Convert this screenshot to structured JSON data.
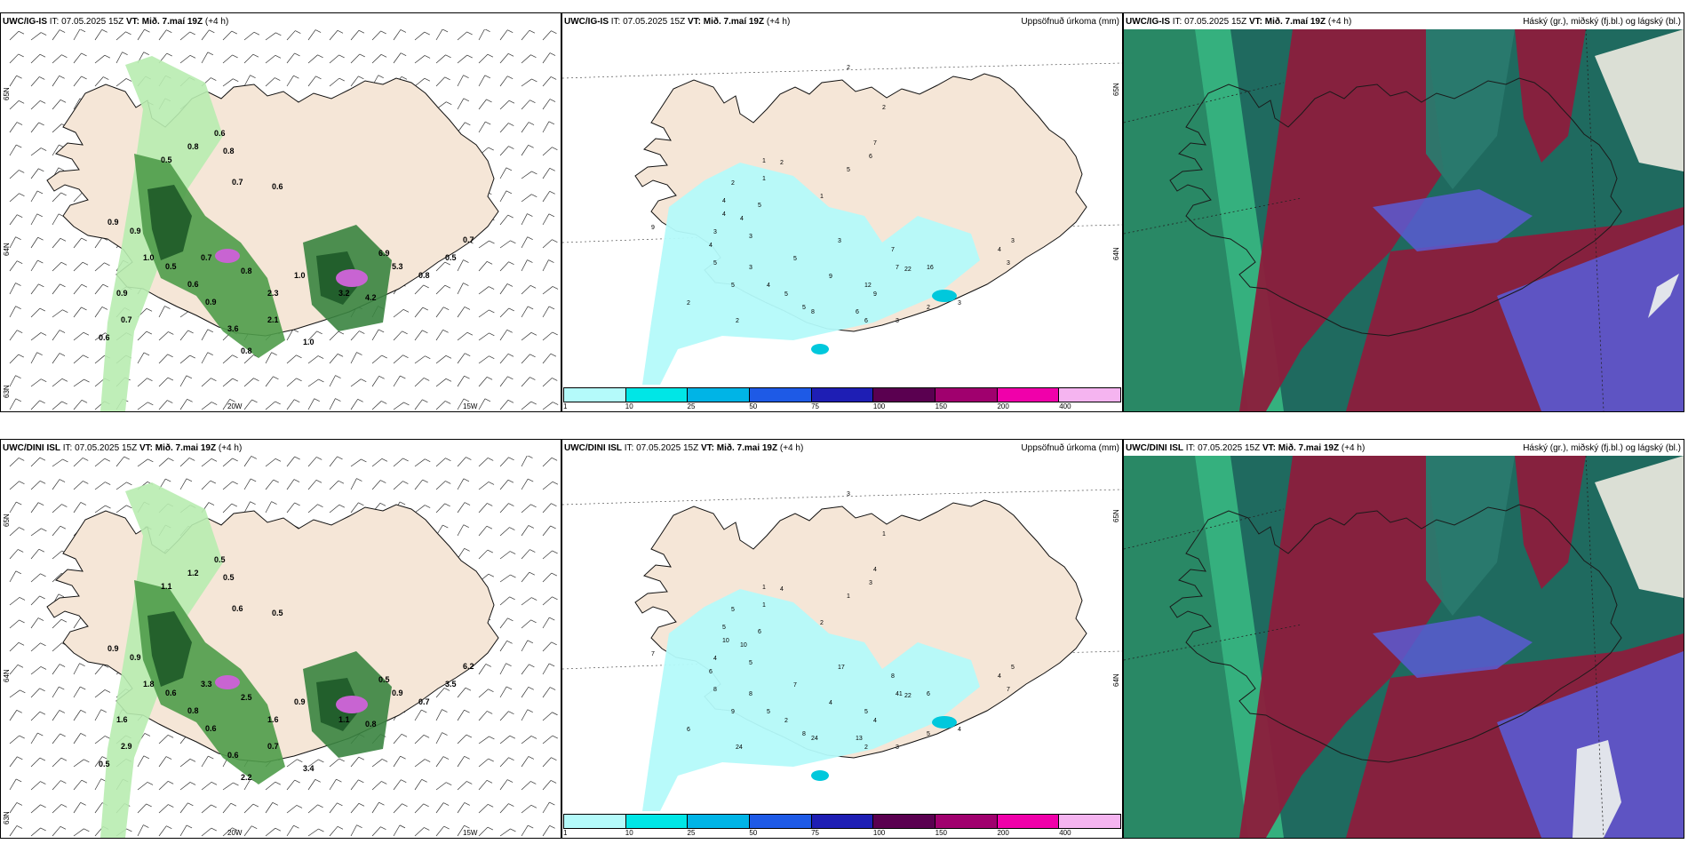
{
  "panels": {
    "p1": {
      "model": "UWC/IG-IS",
      "it_label": "IT:",
      "it": "07.05.2025 15Z",
      "vt_label": "VT:",
      "vt": "Mið. 7.maí 19Z",
      "lead": "(+4 h)",
      "right": "",
      "lat_labels": [
        "65N",
        "64N",
        "63N"
      ],
      "lon_labels": [
        "20W",
        "15W"
      ],
      "values": [
        "0.6",
        "0.8",
        "0.8",
        "0.5",
        "0.7",
        "0.6",
        "0.9",
        "1.0",
        "0.5",
        "0.7",
        "0.8",
        "2.3",
        "1.0",
        "3.2",
        "4.2",
        "6.9",
        "5.3",
        "0.8",
        "0.5",
        "0.7",
        "0.6",
        "0.9",
        "3.6",
        "2.1",
        "1.0",
        "0.8",
        "0.9",
        "0.9",
        "0.7",
        "0.6"
      ]
    },
    "p2": {
      "model": "UWC/IG-IS",
      "it_label": "IT:",
      "it": "07.05.2025 15Z",
      "vt_label": "VT:",
      "vt": "Mið. 7.maí 19Z",
      "lead": "(+4 h)",
      "right": "Uppsöfnuð úrkoma (mm)",
      "lat_labels": [
        "65N",
        "64N"
      ],
      "values": [
        "2",
        "2",
        "1",
        "2",
        "7",
        "6",
        "5",
        "1",
        "1",
        "2",
        "4",
        "4",
        "4",
        "5",
        "3",
        "9",
        "3",
        "4",
        "5",
        "5",
        "3",
        "2",
        "4",
        "2",
        "5",
        "5",
        "8",
        "3",
        "6",
        "6",
        "7",
        "7",
        "22",
        "16",
        "9",
        "12",
        "3",
        "2",
        "3",
        "4",
        "3",
        "3",
        "5",
        "9"
      ]
    },
    "p3": {
      "model": "UWC/IG-IS",
      "it_label": "IT:",
      "it": "07.05.2025 15Z",
      "vt_label": "VT:",
      "vt": "Mið. 7.maí 19Z",
      "lead": "(+4 h)",
      "right": "Háský (gr.), miðský (fj.bl.) og lágský (bl.)"
    },
    "p4": {
      "model": "UWC/DINI ISL",
      "it_label": "IT:",
      "it": "07.05.2025 15Z",
      "vt_label": "VT:",
      "vt": "Mið. 7.mai 19Z",
      "lead": "(+4 h)",
      "right": "",
      "lat_labels": [
        "65N",
        "64N",
        "63N"
      ],
      "lon_labels": [
        "20W",
        "15W"
      ],
      "values": [
        "0.5",
        "0.5",
        "1.2",
        "1.1",
        "0.6",
        "0.5",
        "0.9",
        "1.8",
        "0.6",
        "3.3",
        "2.5",
        "1.6",
        "0.9",
        "1.1",
        "0.8",
        "0.5",
        "0.9",
        "0.7",
        "3.5",
        "6.2",
        "0.8",
        "0.6",
        "0.6",
        "0.7",
        "3.4",
        "2.2",
        "0.9",
        "1.6",
        "2.9",
        "0.5"
      ]
    },
    "p5": {
      "model": "UWC/DINI ISL",
      "it_label": "IT:",
      "it": "07.05.2025 15Z",
      "vt_label": "VT:",
      "vt": "Mið. 7.mai 19Z",
      "lead": "(+4 h)",
      "right": "Uppsöfnuð úrkoma (mm)",
      "lat_labels": [
        "65N",
        "64N"
      ],
      "values": [
        "3",
        "1",
        "1",
        "4",
        "4",
        "3",
        "1",
        "1",
        "2",
        "5",
        "5",
        "10",
        "10",
        "6",
        "4",
        "7",
        "5",
        "6",
        "8",
        "9",
        "8",
        "6",
        "5",
        "24",
        "2",
        "8",
        "24",
        "17",
        "13",
        "2",
        "8",
        "41",
        "22",
        "6",
        "4",
        "5",
        "3",
        "5",
        "4",
        "4",
        "7",
        "5",
        "7",
        "4"
      ]
    },
    "p6": {
      "model": "UWC/DINI ISL",
      "it_label": "IT:",
      "it": "07.05.2025 15Z",
      "vt_label": "VT:",
      "vt": "Mið. 7.mai 19Z",
      "lead": "(+4 h)",
      "right": "Háský (gr.), miðský (fj.bl.) og lágský (bl.)"
    }
  },
  "colorbar": {
    "labels": [
      "1",
      "10",
      "25",
      "50",
      "75",
      "100",
      "150",
      "200",
      "400"
    ],
    "colors": [
      "#b4fafa",
      "#00e6e6",
      "#00b4e6",
      "#1e5ae6",
      "#1e1eb4",
      "#5a0050",
      "#a0006e",
      "#f000aa",
      "#f5b4f0"
    ]
  },
  "colors": {
    "land": "#f5e6d7",
    "precip_light": "#b4fafa",
    "wind_green_light": "#b8ecb0",
    "wind_green_dark": "#1e5a28",
    "cloud_red": "#8c1e3c",
    "cloud_teal": "#2a7a6e",
    "cloud_blue": "#5a5ad2"
  }
}
